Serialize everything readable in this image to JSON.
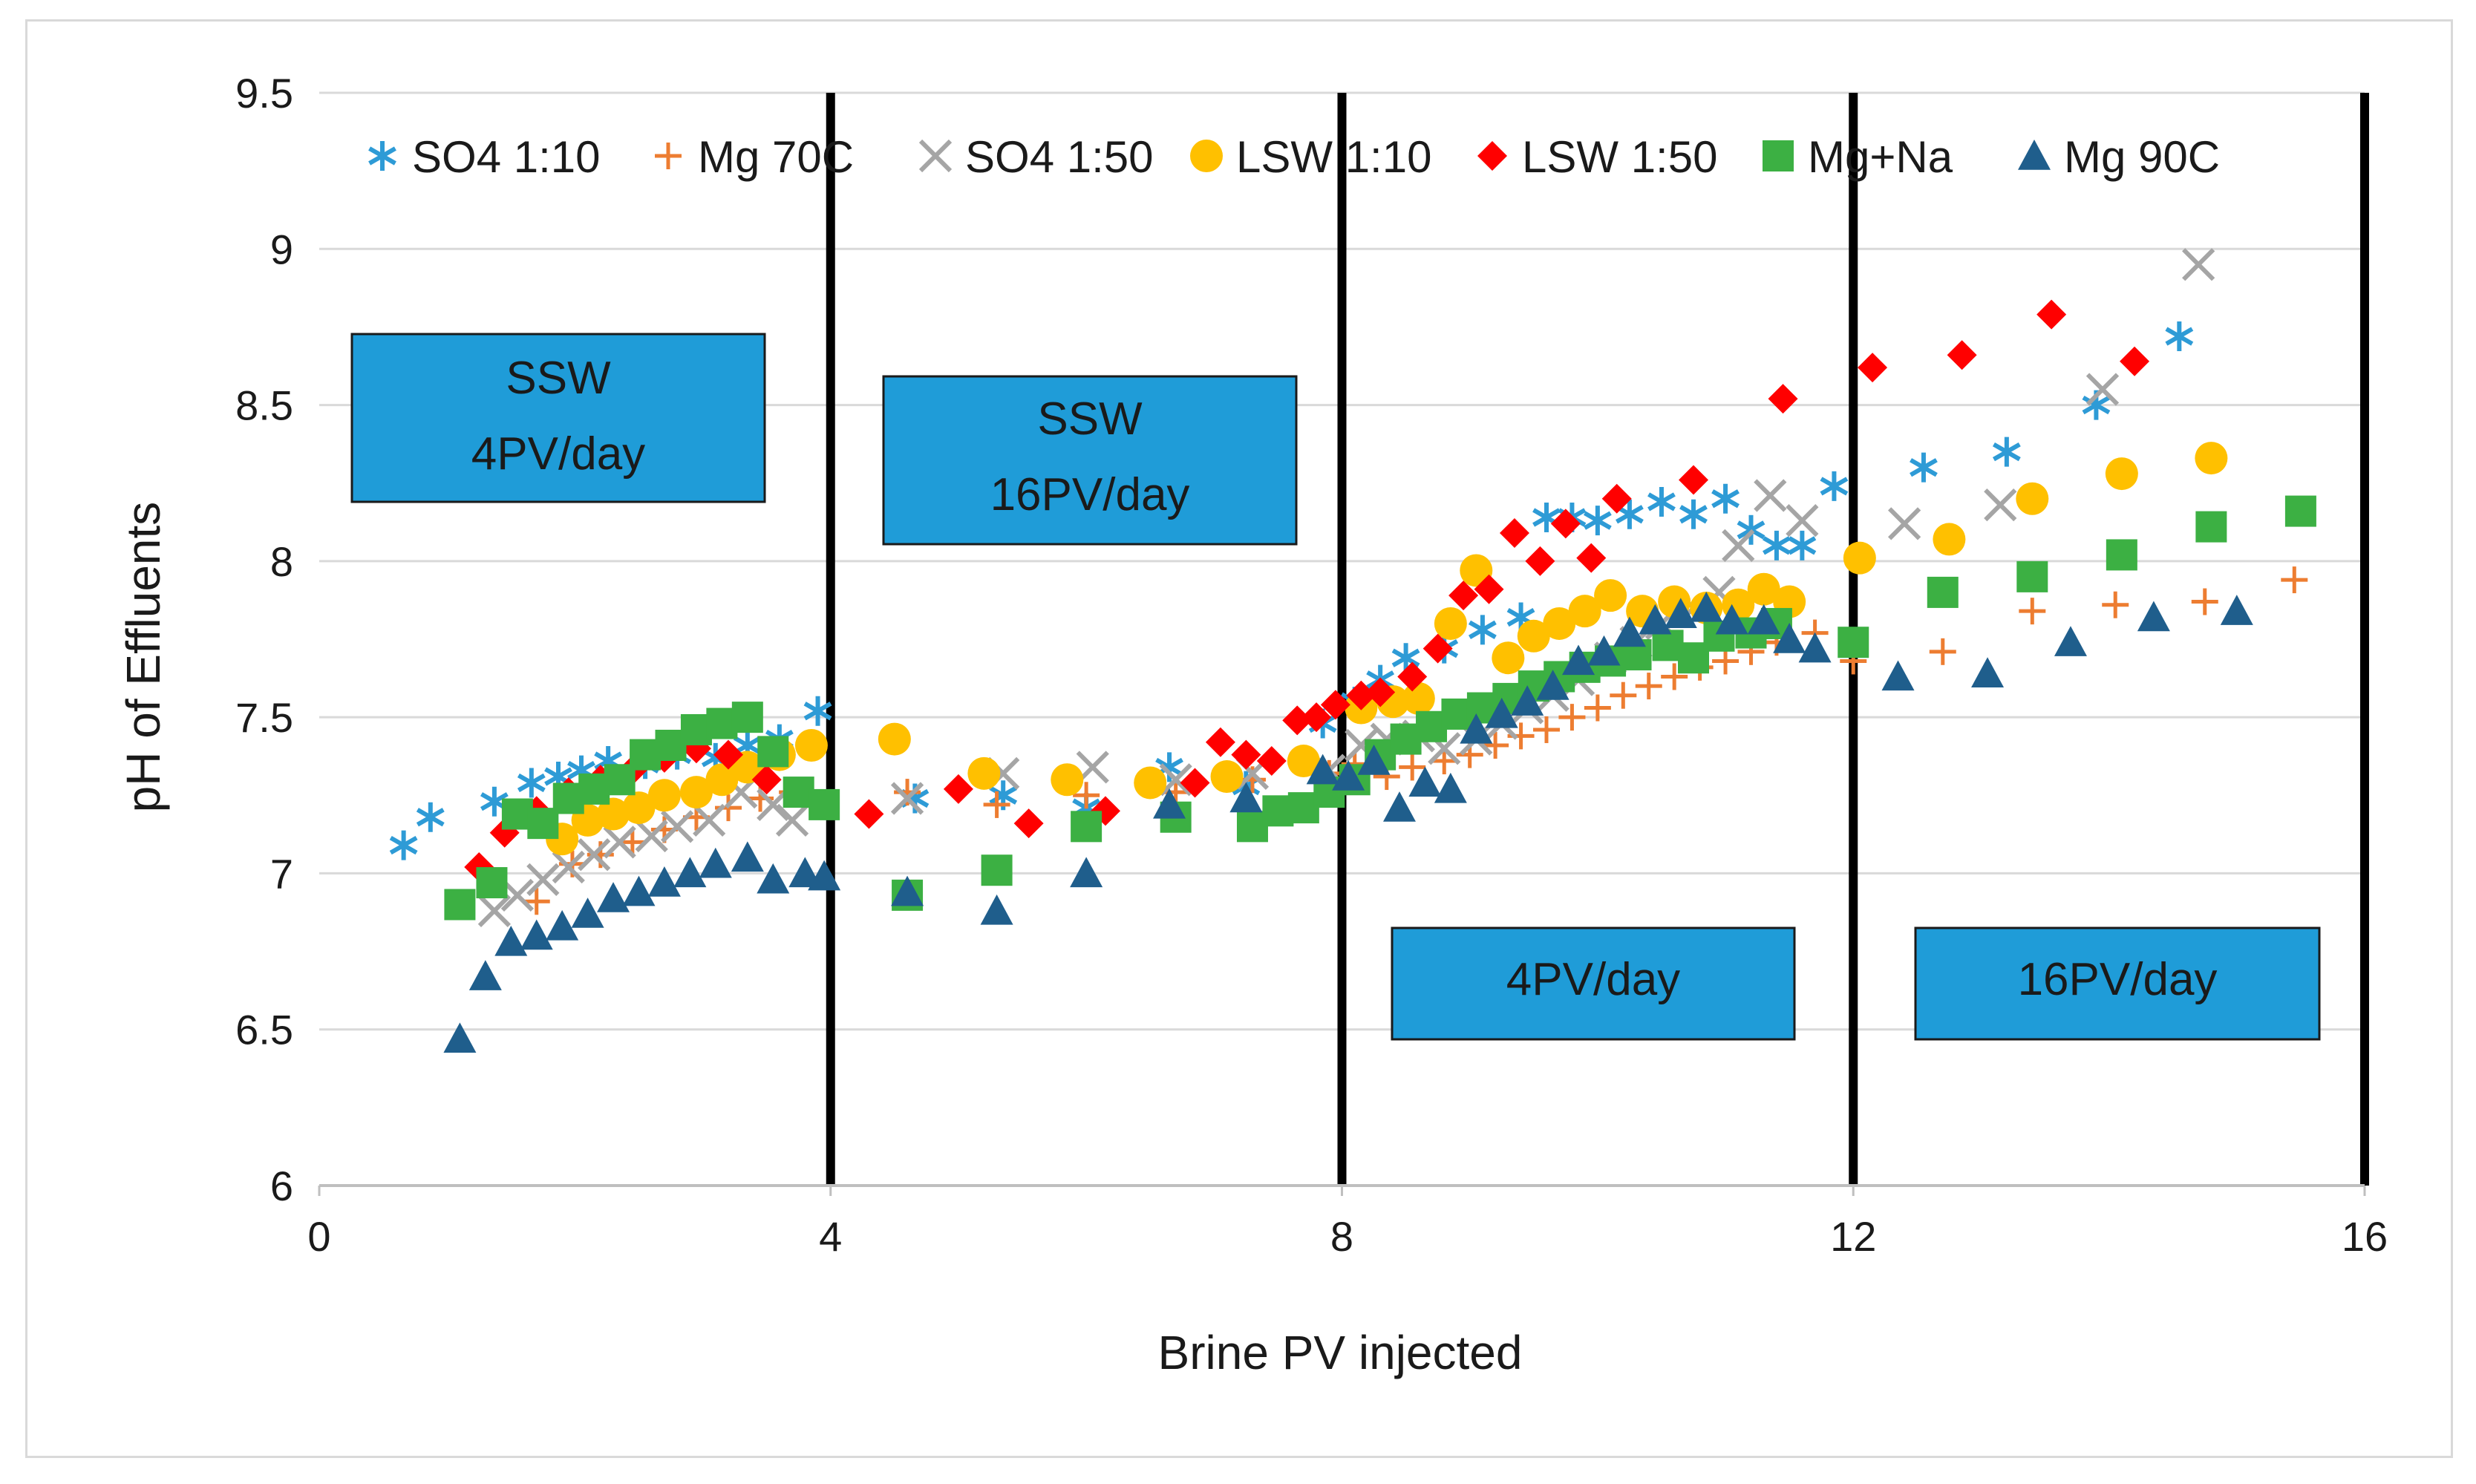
{
  "chart_data": {
    "type": "scatter",
    "title": "",
    "xlabel": "Brine PV injected",
    "ylabel": "pH of Effluents",
    "xlim": [
      0,
      16
    ],
    "ylim": [
      6,
      9.5
    ],
    "x_ticks": [
      "0",
      "4",
      "8",
      "12",
      "16"
    ],
    "y_ticks": [
      "6",
      "6.5",
      "7",
      "7.5",
      "8",
      "8.5",
      "9",
      "9.5"
    ],
    "grid": "horizontal",
    "legend_position": "top",
    "vertical_lines": [
      4,
      8,
      12,
      16
    ],
    "annotation_boxes": [
      {
        "lines": [
          "SSW",
          "4PV/day"
        ]
      },
      {
        "lines": [
          "SSW",
          "16PV/day"
        ]
      },
      {
        "lines": [
          "4PV/day"
        ]
      },
      {
        "lines": [
          "16PV/day"
        ]
      }
    ],
    "series": [
      {
        "name": "SO4 1:10",
        "marker": "asterisk",
        "color": "#2E9BD6",
        "points": [
          [
            0.66,
            7.09
          ],
          [
            0.87,
            7.18
          ],
          [
            1.37,
            7.23
          ],
          [
            1.66,
            7.29
          ],
          [
            1.87,
            7.31
          ],
          [
            2.05,
            7.33
          ],
          [
            2.26,
            7.36
          ],
          [
            2.55,
            7.35
          ],
          [
            2.8,
            7.38
          ],
          [
            3.1,
            7.37
          ],
          [
            3.35,
            7.41
          ],
          [
            3.6,
            7.43
          ],
          [
            3.9,
            7.52
          ],
          [
            4.66,
            7.24
          ],
          [
            5.35,
            7.25
          ],
          [
            6.0,
            7.21
          ],
          [
            6.65,
            7.34
          ],
          [
            7.25,
            7.28
          ],
          [
            7.85,
            7.48
          ],
          [
            8.1,
            7.55
          ],
          [
            8.3,
            7.62
          ],
          [
            8.5,
            7.69
          ],
          [
            8.8,
            7.72
          ],
          [
            9.1,
            7.78
          ],
          [
            9.4,
            7.82
          ],
          [
            9.6,
            8.14
          ],
          [
            9.8,
            8.14
          ],
          [
            10.0,
            8.13
          ],
          [
            10.25,
            8.15
          ],
          [
            10.5,
            8.19
          ],
          [
            10.75,
            8.15
          ],
          [
            11.0,
            8.2
          ],
          [
            11.2,
            8.1
          ],
          [
            11.4,
            8.05
          ],
          [
            11.6,
            8.05
          ],
          [
            11.85,
            8.24
          ],
          [
            12.55,
            8.3
          ],
          [
            13.2,
            8.35
          ],
          [
            13.9,
            8.5
          ],
          [
            14.55,
            8.72
          ]
        ]
      },
      {
        "name": "Mg 70C",
        "marker": "plus",
        "color": "#ED7D31",
        "points": [
          [
            1.7,
            6.91
          ],
          [
            1.98,
            7.03
          ],
          [
            2.2,
            7.06
          ],
          [
            2.45,
            7.1
          ],
          [
            2.7,
            7.14
          ],
          [
            2.95,
            7.18
          ],
          [
            3.2,
            7.21
          ],
          [
            3.45,
            7.24
          ],
          [
            3.7,
            7.26
          ],
          [
            4.6,
            7.26
          ],
          [
            5.3,
            7.22
          ],
          [
            6.0,
            7.25
          ],
          [
            6.7,
            7.26
          ],
          [
            7.3,
            7.3
          ],
          [
            7.9,
            7.32
          ],
          [
            8.1,
            7.35
          ],
          [
            8.35,
            7.31
          ],
          [
            8.55,
            7.34
          ],
          [
            8.8,
            7.36
          ],
          [
            9.0,
            7.38
          ],
          [
            9.2,
            7.41
          ],
          [
            9.4,
            7.44
          ],
          [
            9.6,
            7.46
          ],
          [
            9.8,
            7.5
          ],
          [
            10.0,
            7.53
          ],
          [
            10.2,
            7.57
          ],
          [
            10.4,
            7.6
          ],
          [
            10.6,
            7.63
          ],
          [
            10.8,
            7.66
          ],
          [
            11.0,
            7.68
          ],
          [
            11.2,
            7.71
          ],
          [
            11.4,
            7.74
          ],
          [
            11.7,
            7.77
          ],
          [
            12.0,
            7.68
          ],
          [
            12.7,
            7.71
          ],
          [
            13.4,
            7.84
          ],
          [
            14.05,
            7.86
          ],
          [
            14.75,
            7.87
          ],
          [
            15.45,
            7.94
          ]
        ]
      },
      {
        "name": "SO4 1:50",
        "marker": "cross",
        "color": "#A5A5A5",
        "points": [
          [
            1.37,
            6.88
          ],
          [
            1.55,
            6.93
          ],
          [
            1.75,
            6.98
          ],
          [
            1.95,
            7.02
          ],
          [
            2.15,
            7.06
          ],
          [
            2.35,
            7.1
          ],
          [
            2.6,
            7.12
          ],
          [
            2.8,
            7.15
          ],
          [
            3.05,
            7.17
          ],
          [
            3.3,
            7.26
          ],
          [
            3.55,
            7.22
          ],
          [
            3.7,
            7.17
          ],
          [
            4.6,
            7.24
          ],
          [
            5.35,
            7.32
          ],
          [
            6.05,
            7.34
          ],
          [
            6.7,
            7.3
          ],
          [
            7.3,
            7.32
          ],
          [
            7.9,
            7.33
          ],
          [
            8.15,
            7.41
          ],
          [
            8.35,
            7.43
          ],
          [
            8.6,
            7.44
          ],
          [
            8.8,
            7.4
          ],
          [
            9.05,
            7.43
          ],
          [
            9.25,
            7.48
          ],
          [
            9.45,
            7.53
          ],
          [
            9.65,
            7.57
          ],
          [
            9.85,
            7.62
          ],
          [
            10.1,
            7.69
          ],
          [
            10.3,
            7.74
          ],
          [
            10.5,
            7.8
          ],
          [
            10.75,
            7.85
          ],
          [
            10.95,
            7.9
          ],
          [
            11.1,
            8.05
          ],
          [
            11.35,
            8.21
          ],
          [
            11.6,
            8.13
          ],
          [
            12.4,
            8.12
          ],
          [
            13.15,
            8.18
          ],
          [
            13.95,
            8.55
          ],
          [
            14.7,
            8.95
          ]
        ]
      },
      {
        "name": "LSW 1:10",
        "marker": "circle",
        "color": "#FFC000",
        "points": [
          [
            1.9,
            7.11
          ],
          [
            2.1,
            7.17
          ],
          [
            2.3,
            7.19
          ],
          [
            2.5,
            7.21
          ],
          [
            2.7,
            7.25
          ],
          [
            2.95,
            7.26
          ],
          [
            3.15,
            7.3
          ],
          [
            3.35,
            7.34
          ],
          [
            3.6,
            7.38
          ],
          [
            3.85,
            7.41
          ],
          [
            4.5,
            7.43
          ],
          [
            5.2,
            7.32
          ],
          [
            5.85,
            7.3
          ],
          [
            6.5,
            7.29
          ],
          [
            7.1,
            7.31
          ],
          [
            7.7,
            7.36
          ],
          [
            8.15,
            7.53
          ],
          [
            8.4,
            7.55
          ],
          [
            8.6,
            7.56
          ],
          [
            8.85,
            7.8
          ],
          [
            9.05,
            7.97
          ],
          [
            9.3,
            7.69
          ],
          [
            9.5,
            7.76
          ],
          [
            9.7,
            7.8
          ],
          [
            9.9,
            7.84
          ],
          [
            10.1,
            7.89
          ],
          [
            10.35,
            7.84
          ],
          [
            10.6,
            7.87
          ],
          [
            10.85,
            7.85
          ],
          [
            11.1,
            7.86
          ],
          [
            11.3,
            7.91
          ],
          [
            11.5,
            7.87
          ],
          [
            12.05,
            8.01
          ],
          [
            12.75,
            8.07
          ],
          [
            13.4,
            8.2
          ],
          [
            14.1,
            8.28
          ],
          [
            14.8,
            8.33
          ]
        ]
      },
      {
        "name": "LSW 1:50",
        "marker": "diamond",
        "color": "#FF0000",
        "points": [
          [
            1.25,
            7.02
          ],
          [
            1.45,
            7.13
          ],
          [
            1.7,
            7.2
          ],
          [
            1.95,
            7.26
          ],
          [
            2.2,
            7.3
          ],
          [
            2.45,
            7.33
          ],
          [
            2.7,
            7.37
          ],
          [
            2.95,
            7.4
          ],
          [
            3.2,
            7.38
          ],
          [
            3.5,
            7.3
          ],
          [
            4.3,
            7.19
          ],
          [
            5.0,
            7.27
          ],
          [
            5.55,
            7.16
          ],
          [
            6.15,
            7.2
          ],
          [
            6.85,
            7.29
          ],
          [
            7.05,
            7.42
          ],
          [
            7.25,
            7.38
          ],
          [
            7.45,
            7.36
          ],
          [
            7.65,
            7.49
          ],
          [
            7.8,
            7.5
          ],
          [
            7.95,
            7.54
          ],
          [
            8.15,
            7.57
          ],
          [
            8.3,
            7.58
          ],
          [
            8.55,
            7.63
          ],
          [
            8.75,
            7.72
          ],
          [
            8.95,
            7.89
          ],
          [
            9.15,
            7.91
          ],
          [
            9.35,
            8.09
          ],
          [
            9.55,
            8.0
          ],
          [
            9.75,
            8.12
          ],
          [
            9.95,
            8.01
          ],
          [
            10.15,
            8.2
          ],
          [
            10.75,
            8.26
          ],
          [
            11.45,
            8.52
          ],
          [
            12.15,
            8.62
          ],
          [
            12.85,
            8.66
          ],
          [
            13.55,
            8.79
          ],
          [
            14.2,
            8.64
          ]
        ]
      },
      {
        "name": "Mg+Na",
        "marker": "square",
        "color": "#3CB043",
        "points": [
          [
            1.1,
            6.9
          ],
          [
            1.35,
            6.97
          ],
          [
            1.55,
            7.19
          ],
          [
            1.75,
            7.16
          ],
          [
            1.95,
            7.24
          ],
          [
            2.15,
            7.27
          ],
          [
            2.35,
            7.3
          ],
          [
            2.55,
            7.38
          ],
          [
            2.75,
            7.41
          ],
          [
            2.95,
            7.46
          ],
          [
            3.15,
            7.48
          ],
          [
            3.35,
            7.5
          ],
          [
            3.55,
            7.39
          ],
          [
            3.75,
            7.26
          ],
          [
            3.95,
            7.22
          ],
          [
            4.6,
            6.93
          ],
          [
            5.3,
            7.01
          ],
          [
            6.0,
            7.15
          ],
          [
            6.7,
            7.18
          ],
          [
            7.3,
            7.15
          ],
          [
            7.5,
            7.2
          ],
          [
            7.7,
            7.21
          ],
          [
            7.9,
            7.26
          ],
          [
            8.1,
            7.3
          ],
          [
            8.3,
            7.38
          ],
          [
            8.5,
            7.43
          ],
          [
            8.7,
            7.47
          ],
          [
            8.9,
            7.51
          ],
          [
            9.1,
            7.53
          ],
          [
            9.3,
            7.56
          ],
          [
            9.5,
            7.6
          ],
          [
            9.7,
            7.63
          ],
          [
            9.9,
            7.66
          ],
          [
            10.1,
            7.68
          ],
          [
            10.3,
            7.7
          ],
          [
            10.55,
            7.73
          ],
          [
            10.75,
            7.69
          ],
          [
            10.95,
            7.76
          ],
          [
            11.2,
            7.77
          ],
          [
            11.4,
            7.8
          ],
          [
            12.0,
            7.74
          ],
          [
            12.7,
            7.9
          ],
          [
            13.4,
            7.95
          ],
          [
            14.1,
            8.02
          ],
          [
            14.8,
            8.11
          ],
          [
            15.5,
            8.16
          ]
        ]
      },
      {
        "name": "Mg 90C",
        "marker": "triangle",
        "color": "#1F5E8C",
        "points": [
          [
            1.1,
            6.47
          ],
          [
            1.3,
            6.67
          ],
          [
            1.5,
            6.78
          ],
          [
            1.7,
            6.8
          ],
          [
            1.9,
            6.83
          ],
          [
            2.1,
            6.87
          ],
          [
            2.3,
            6.92
          ],
          [
            2.5,
            6.94
          ],
          [
            2.7,
            6.97
          ],
          [
            2.9,
            7.0
          ],
          [
            3.1,
            7.03
          ],
          [
            3.35,
            7.05
          ],
          [
            3.55,
            6.98
          ],
          [
            3.8,
            7.0
          ],
          [
            3.95,
            6.99
          ],
          [
            4.6,
            6.94
          ],
          [
            5.3,
            6.88
          ],
          [
            6.0,
            7.0
          ],
          [
            6.65,
            7.22
          ],
          [
            7.25,
            7.24
          ],
          [
            7.85,
            7.33
          ],
          [
            8.05,
            7.31
          ],
          [
            8.25,
            7.36
          ],
          [
            8.45,
            7.21
          ],
          [
            8.65,
            7.29
          ],
          [
            8.85,
            7.27
          ],
          [
            9.05,
            7.46
          ],
          [
            9.25,
            7.51
          ],
          [
            9.45,
            7.55
          ],
          [
            9.65,
            7.6
          ],
          [
            9.85,
            7.68
          ],
          [
            10.05,
            7.71
          ],
          [
            10.25,
            7.77
          ],
          [
            10.45,
            7.81
          ],
          [
            10.65,
            7.83
          ],
          [
            10.85,
            7.85
          ],
          [
            11.05,
            7.81
          ],
          [
            11.3,
            7.81
          ],
          [
            11.5,
            7.75
          ],
          [
            11.7,
            7.72
          ],
          [
            12.35,
            7.63
          ],
          [
            13.05,
            7.64
          ],
          [
            13.7,
            7.74
          ],
          [
            14.35,
            7.82
          ],
          [
            15.0,
            7.84
          ]
        ]
      }
    ]
  }
}
